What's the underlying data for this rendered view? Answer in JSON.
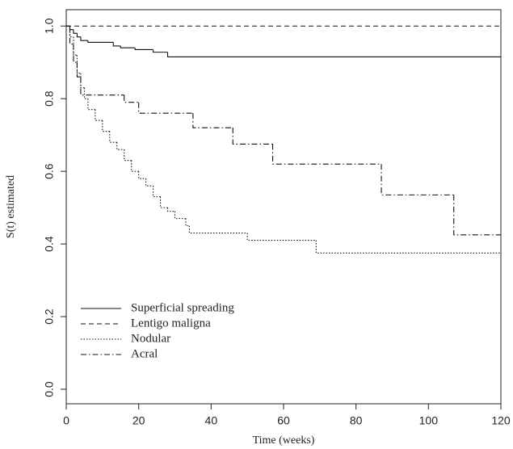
{
  "chart_data": {
    "type": "line",
    "step": "post",
    "x_label": "Time (weeks)",
    "y_label": "S(t) estimated",
    "xlim": [
      0,
      120
    ],
    "ylim": [
      -0.04,
      1.045
    ],
    "xticks": [
      0,
      20,
      40,
      60,
      80,
      100,
      120
    ],
    "yticks": [
      {
        "value": 0,
        "label": "0.0"
      },
      0.2,
      0.4,
      0.6,
      0.8,
      {
        "value": 1,
        "label": "1.0"
      }
    ],
    "legend": "bottom-left",
    "series": [
      {
        "name": "Superficial spreading",
        "color": "#111111",
        "dash": "none",
        "x": [
          0,
          1,
          2,
          3,
          4,
          6,
          13,
          15,
          19,
          24,
          28,
          120
        ],
        "values": [
          1.0,
          0.99,
          0.98,
          0.97,
          0.96,
          0.955,
          0.945,
          0.94,
          0.935,
          0.928,
          0.915,
          0.915
        ]
      },
      {
        "name": "Lentigo maligna",
        "color": "#111111",
        "dash": "6 4",
        "x": [
          0,
          120
        ],
        "values": [
          1.0,
          1.0
        ]
      },
      {
        "name": "Nodular",
        "color": "#111111",
        "dash": "1.5 2",
        "x": [
          0,
          1,
          2,
          3,
          4,
          5,
          6,
          8,
          10,
          12,
          14,
          16,
          18,
          20,
          22,
          24,
          26,
          28,
          30,
          33,
          34,
          50,
          69,
          120
        ],
        "values": [
          1.0,
          0.97,
          0.92,
          0.87,
          0.83,
          0.8,
          0.77,
          0.74,
          0.71,
          0.68,
          0.66,
          0.63,
          0.6,
          0.58,
          0.56,
          0.53,
          0.5,
          0.49,
          0.47,
          0.45,
          0.43,
          0.41,
          0.375,
          0.375
        ]
      },
      {
        "name": "Acral",
        "color": "#111111",
        "dash": "7 3 1.5 3",
        "x": [
          0,
          1,
          2,
          3,
          4,
          16,
          20,
          35,
          46,
          57,
          87,
          107,
          120
        ],
        "values": [
          1.0,
          0.95,
          0.9,
          0.86,
          0.81,
          0.79,
          0.76,
          0.72,
          0.675,
          0.62,
          0.535,
          0.425,
          0.425
        ]
      }
    ]
  }
}
